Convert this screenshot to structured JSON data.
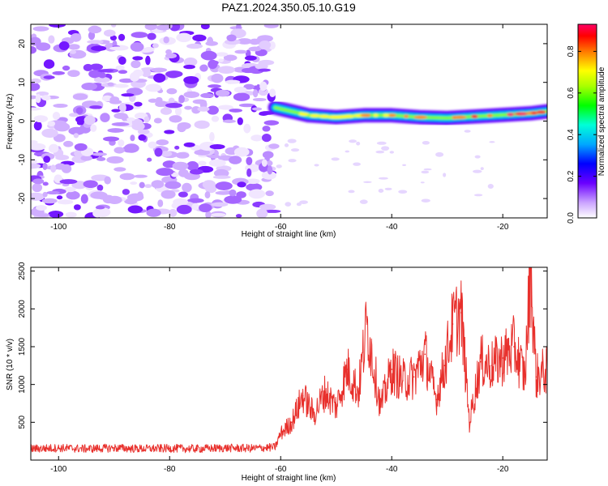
{
  "figure": {
    "title": "PAZ1.2024.350.05.10.G19"
  },
  "colors": {
    "series_red": "#e8302c",
    "axis": "#000000",
    "background": "#ffffff"
  },
  "chart_data": [
    {
      "type": "heatmap",
      "xlabel": "Height of straight line (km)",
      "ylabel": "Frequency (Hz)",
      "xlim": [
        -105,
        -12
      ],
      "ylim": [
        -25,
        25
      ],
      "x_ticks": [
        -100,
        -80,
        -60,
        -40,
        -20
      ],
      "y_ticks": [
        -20,
        -10,
        0,
        10,
        20
      ],
      "colorbar": {
        "label": "Normalized spectral amplitude",
        "range": [
          0,
          0.93
        ],
        "ticks": [
          0.0,
          0.2,
          0.4,
          0.6,
          0.8
        ],
        "tick_labels": [
          "0.0",
          "0.2",
          "0.4",
          "0.6",
          "0.8"
        ],
        "colormap": "rainbow (white→purple→blue→cyan→green→yellow→orange→red→magenta)"
      },
      "regions": [
        {
          "description": "noise speckle",
          "x_range": [
            -105,
            -61
          ],
          "freq_range": [
            -25,
            25
          ],
          "amplitude_range": [
            0.0,
            0.1
          ]
        },
        {
          "description": "signal ridge",
          "x_range": [
            -61,
            -12
          ],
          "freq_range": [
            0,
            4
          ],
          "amplitude_range": [
            0.2,
            0.9
          ]
        }
      ],
      "ridge_center": [
        {
          "x": -61,
          "f": 3.5
        },
        {
          "x": -55,
          "f": 1.5
        },
        {
          "x": -50,
          "f": 1.0
        },
        {
          "x": -45,
          "f": 1.5
        },
        {
          "x": -40,
          "f": 1.5
        },
        {
          "x": -35,
          "f": 1.0
        },
        {
          "x": -30,
          "f": 0.8
        },
        {
          "x": -25,
          "f": 1.2
        },
        {
          "x": -20,
          "f": 1.6
        },
        {
          "x": -15,
          "f": 2.0
        },
        {
          "x": -12,
          "f": 2.5
        }
      ]
    },
    {
      "type": "line",
      "xlabel": "Height of straight line (km)",
      "ylabel": "SNR (10 * v/v)",
      "xlim": [
        -105,
        -12
      ],
      "ylim": [
        0,
        2550
      ],
      "x_ticks": [
        -100,
        -80,
        -60,
        -40,
        -20
      ],
      "y_ticks": [
        500,
        1000,
        1500,
        2000,
        2500
      ],
      "series": [
        {
          "color": "#e8302c",
          "x": [
            -105,
            -100,
            -95,
            -90,
            -85,
            -80,
            -75,
            -70,
            -65,
            -61,
            -60,
            -58,
            -56,
            -54,
            -52,
            -50,
            -48,
            -46,
            -44.5,
            -42,
            -40,
            -38,
            -36,
            -34,
            -32,
            -30.5,
            -29,
            -27.5,
            -26,
            -24,
            -22,
            -20,
            -18,
            -16,
            -15,
            -14,
            -12
          ],
          "values": [
            150,
            160,
            150,
            160,
            150,
            155,
            150,
            160,
            155,
            170,
            350,
            500,
            850,
            600,
            900,
            700,
            1200,
            900,
            1800,
            700,
            1200,
            1050,
            1100,
            1400,
            800,
            1250,
            1800,
            1950,
            500,
            1300,
            1250,
            1350,
            1500,
            1100,
            2550,
            1100,
            1200
          ]
        }
      ]
    }
  ]
}
